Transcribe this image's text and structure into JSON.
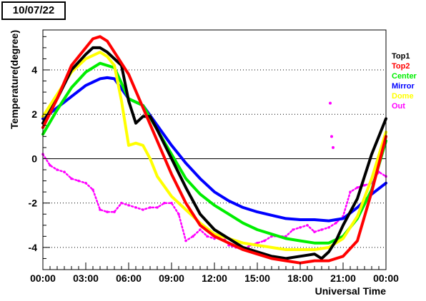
{
  "date_label": "10/07/22",
  "chart_data": {
    "type": "line",
    "xlabel": "Universal Time",
    "ylabel": "Temperature(degree)",
    "x_unit": "hours UT",
    "xlim": [
      0,
      24
    ],
    "ylim": [
      -5,
      5.8
    ],
    "x_ticks": [
      0,
      3,
      6,
      9,
      12,
      15,
      18,
      21,
      24
    ],
    "x_tick_labels": [
      "00:00",
      "03:00",
      "06:00",
      "09:00",
      "12:00",
      "15:00",
      "18:00",
      "21:00",
      "00:00"
    ],
    "y_ticks": [
      -4,
      -2,
      0,
      2,
      4
    ],
    "y_tick_labels": [
      "-4",
      "-2",
      "0",
      "2",
      "4"
    ],
    "grid": "horizontal dotted",
    "legend_position": "right",
    "series": [
      {
        "name": "Top1",
        "color": "#000000",
        "x": [
          0,
          1,
          2,
          3,
          3.5,
          4,
          4.5,
          5,
          5.5,
          6,
          6.5,
          7,
          7.5,
          8,
          9,
          10,
          11,
          12,
          13,
          14,
          15,
          16,
          17,
          18,
          19,
          19.5,
          20,
          20.5,
          21,
          22,
          23,
          24
        ],
        "y": [
          1.6,
          2.7,
          4.0,
          4.7,
          5.0,
          5.0,
          4.8,
          4.5,
          4.2,
          2.6,
          1.6,
          1.9,
          1.9,
          1.3,
          0.0,
          -1.3,
          -2.5,
          -3.2,
          -3.6,
          -4.0,
          -4.2,
          -4.4,
          -4.5,
          -4.4,
          -4.3,
          -4.5,
          -4.2,
          -3.7,
          -3.0,
          -1.8,
          0.2,
          1.8
        ]
      },
      {
        "name": "Top2",
        "color": "#ff0000",
        "x": [
          0,
          1,
          2,
          3,
          3.5,
          4,
          4.5,
          5,
          6,
          7,
          8,
          9,
          10,
          11,
          12,
          13,
          14,
          15,
          16,
          17,
          18,
          19,
          20,
          21,
          22,
          23,
          24
        ],
        "y": [
          1.4,
          2.7,
          4.2,
          5.0,
          5.4,
          5.5,
          5.3,
          4.8,
          3.8,
          2.3,
          0.8,
          -0.7,
          -2.0,
          -3.0,
          -3.5,
          -3.8,
          -4.1,
          -4.3,
          -4.5,
          -4.6,
          -4.7,
          -4.6,
          -4.6,
          -4.4,
          -3.7,
          -1.5,
          1.0
        ]
      },
      {
        "name": "Center",
        "color": "#00ee00",
        "x": [
          0,
          1,
          2,
          3,
          4,
          5,
          6,
          7,
          8,
          9,
          10,
          11,
          12,
          13,
          14,
          15,
          16,
          17,
          18,
          19,
          20,
          21,
          22,
          23,
          24
        ],
        "y": [
          1.1,
          2.2,
          3.2,
          3.9,
          4.3,
          4.1,
          2.7,
          2.4,
          1.3,
          0.2,
          -0.9,
          -1.6,
          -2.1,
          -2.5,
          -2.9,
          -3.2,
          -3.4,
          -3.6,
          -3.7,
          -3.8,
          -3.8,
          -3.5,
          -2.7,
          -1.4,
          0.8
        ]
      },
      {
        "name": "Mirror",
        "color": "#0000ff",
        "x": [
          0,
          1,
          2,
          3,
          4,
          4.5,
          5,
          6,
          7,
          8,
          9,
          10,
          11,
          12,
          13,
          14,
          15,
          16,
          17,
          18,
          19,
          20,
          21,
          22,
          23,
          24
        ],
        "y": [
          1.8,
          2.3,
          2.8,
          3.3,
          3.6,
          3.65,
          3.6,
          2.7,
          2.4,
          1.5,
          0.6,
          -0.2,
          -0.9,
          -1.5,
          -1.9,
          -2.2,
          -2.4,
          -2.55,
          -2.7,
          -2.75,
          -2.75,
          -2.8,
          -2.7,
          -2.2,
          -1.6,
          -1.1
        ]
      },
      {
        "name": "Dome",
        "color": "#ffff00",
        "x": [
          0,
          1,
          2,
          3,
          4,
          4.5,
          5,
          5.5,
          6,
          6.5,
          7,
          7.5,
          8,
          9,
          10,
          11,
          12,
          13,
          14,
          15,
          16,
          17,
          18,
          19,
          20,
          21,
          22,
          23,
          24
        ],
        "y": [
          1.9,
          2.9,
          3.9,
          4.5,
          4.8,
          4.6,
          4.2,
          2.6,
          0.6,
          0.7,
          0.6,
          0.0,
          -0.8,
          -1.7,
          -2.3,
          -2.9,
          -3.4,
          -3.6,
          -3.8,
          -3.9,
          -4.0,
          -4.1,
          -4.1,
          -4.1,
          -4.0,
          -3.6,
          -2.6,
          -0.9,
          1.2
        ]
      },
      {
        "name": "Out",
        "color": "#ff00ff",
        "x": [
          0,
          0.5,
          1,
          1.5,
          2,
          2.5,
          3,
          3.5,
          4,
          4.5,
          5,
          5.5,
          6,
          6.5,
          7,
          7.5,
          8,
          8.5,
          9,
          9.5,
          10,
          10.5,
          11,
          11.5,
          12,
          12.5,
          13,
          13.5,
          14,
          14.5,
          15,
          15.5,
          16,
          16.5,
          17,
          17.5,
          18,
          18.5,
          19,
          19.5,
          20,
          20.5,
          21,
          21.5,
          22,
          22.5,
          23,
          23.5,
          24
        ],
        "y": [
          0.2,
          -0.3,
          -0.5,
          -0.6,
          -0.9,
          -1.0,
          -1.1,
          -1.4,
          -2.3,
          -2.4,
          -2.4,
          -2.0,
          -2.1,
          -2.2,
          -2.3,
          -2.2,
          -2.2,
          -2.0,
          -2.0,
          -2.5,
          -3.7,
          -3.5,
          -3.2,
          -3.5,
          -3.6,
          -3.4,
          -3.9,
          -4.0,
          -4.1,
          -3.9,
          -3.8,
          -3.7,
          -3.5,
          -3.5,
          -3.5,
          -3.2,
          -3.1,
          -3.0,
          -3.3,
          -3.2,
          -3.1,
          -2.9,
          -2.6,
          -1.5,
          -1.3,
          -1.2,
          -1.1,
          -0.6,
          -0.8
        ]
      }
    ],
    "annotations": {
      "out_spike_x": [
        20.1,
        20.2,
        20.3
      ],
      "out_spike_y": [
        2.5,
        1.0,
        0.5
      ]
    }
  }
}
